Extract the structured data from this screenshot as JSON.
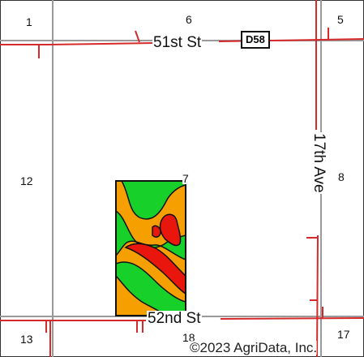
{
  "map": {
    "sections": {
      "nw": "1",
      "n": "6",
      "ne": "5",
      "w": "12",
      "center": "7",
      "e": "8",
      "sw": "13",
      "s": "18",
      "se": "17"
    },
    "roads": {
      "north": "51st St",
      "south": "52nd St",
      "east": "17th Ave"
    },
    "highway_shield": "D58",
    "copyright": "©2023 AgriData, Inc.",
    "colors": {
      "road": "#d42a2a",
      "section_line": "#9a9a9a",
      "field_outline": "#111111",
      "zone_green": "#17d12a",
      "zone_orange": "#f5a000",
      "zone_red": "#e8160d"
    }
  }
}
